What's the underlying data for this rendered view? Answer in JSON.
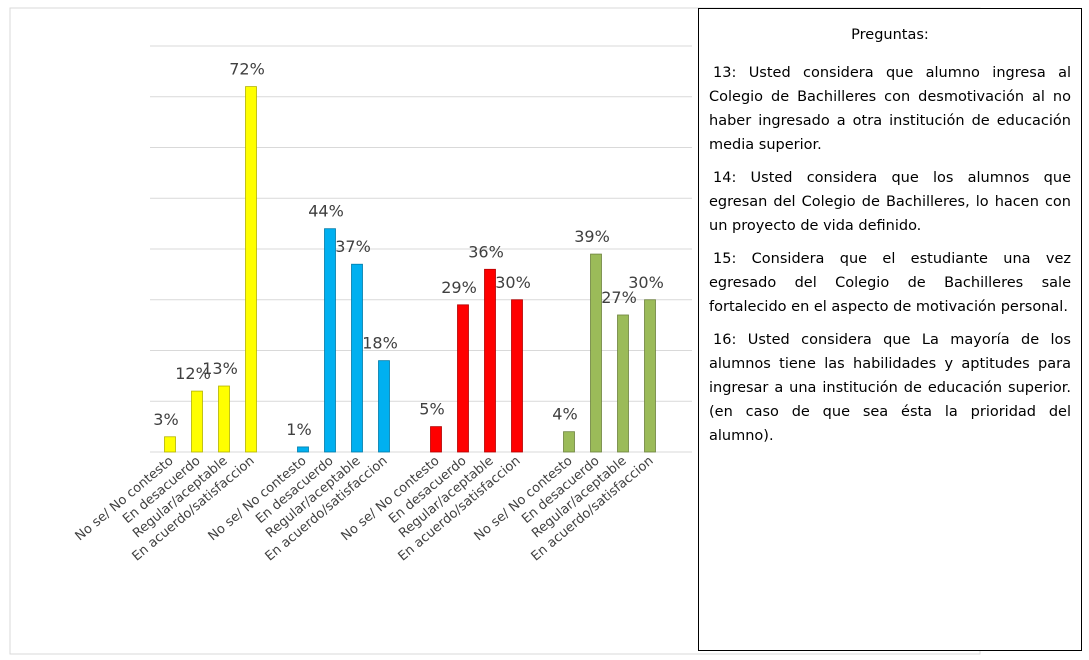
{
  "chart_data": {
    "type": "bar",
    "categories": [
      "No se/ No contesto",
      "En desacuerdo",
      "Regular/aceptable",
      "En acuerdo/satisfaccion"
    ],
    "groups": [
      {
        "color": "#ffff00",
        "values": [
          3,
          12,
          13,
          72
        ],
        "value_labels": [
          "3%",
          "12%",
          "13%",
          "72%"
        ]
      },
      {
        "color": "#00b0f0",
        "values": [
          1,
          44,
          37,
          18
        ],
        "value_labels": [
          "1%",
          "44%",
          "37%",
          "18%"
        ]
      },
      {
        "color": "#ff0000",
        "values": [
          5,
          29,
          36,
          30
        ],
        "value_labels": [
          "5%",
          "29%",
          "36%",
          "30%"
        ]
      },
      {
        "color": "#9bbb59",
        "values": [
          4,
          39,
          27,
          30
        ],
        "value_labels": [
          "4%",
          "39%",
          "27%",
          "30%"
        ]
      }
    ],
    "ylim": [
      0,
      80
    ],
    "yticks": [
      0,
      10,
      20,
      30,
      40,
      50,
      60,
      70,
      80
    ],
    "grid": true
  },
  "notes": {
    "title": "Preguntas:",
    "items": [
      "13: Usted considera que alumno ingresa al Colegio de Bachilleres con desmotivación al no haber ingresado a otra institución de educación media superior.",
      "14: Usted considera que los alumnos que egresan del Colegio de Bachilleres, lo hacen con un proyecto de vida definido.",
      "15: Considera que el estudiante una vez egresado del Colegio de Bachilleres sale fortalecido en el aspecto de motivación personal.",
      "16: Usted considera que La mayoría de los alumnos tiene las habilidades y aptitudes para ingresar a una institución de educación superior. (en caso de que sea ésta la prioridad del alumno)."
    ]
  }
}
